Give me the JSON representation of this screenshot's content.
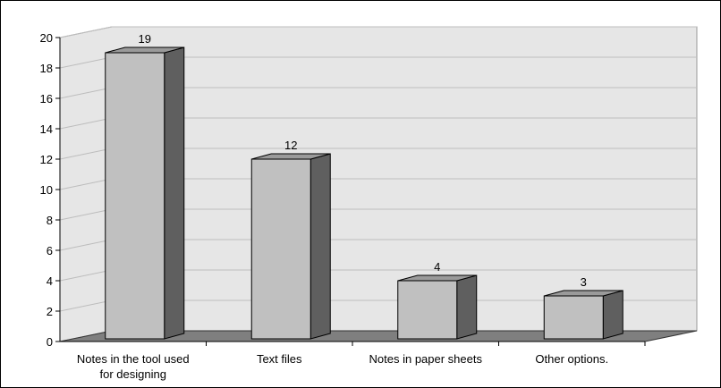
{
  "chart_data": {
    "type": "bar",
    "style": "3d-column",
    "categories": [
      [
        "Notes in the tool used",
        "for designing"
      ],
      [
        "Text files"
      ],
      [
        "Notes in paper sheets"
      ],
      [
        "Other options."
      ]
    ],
    "values": [
      19,
      12,
      4,
      3
    ],
    "data_labels": [
      "19",
      "12",
      "4",
      "3"
    ],
    "y_ticks": [
      "0",
      "2",
      "4",
      "6",
      "8",
      "10",
      "12",
      "14",
      "16",
      "18",
      "20"
    ],
    "ylim": [
      0,
      20
    ],
    "grid": true,
    "legend": "none",
    "title": "",
    "xlabel": "",
    "ylabel": "",
    "colors": {
      "bar_front": "#c0c0c0",
      "bar_side": "#5f5f5f",
      "bar_top": "#9a9a9a",
      "floor": "#7f7f7f",
      "wall": "#e6e6e6",
      "grid": "#bdbdbd"
    }
  }
}
